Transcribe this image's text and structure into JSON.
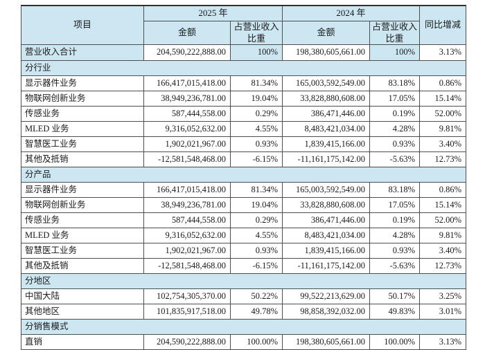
{
  "colors": {
    "header_bg": "#cde7f2",
    "border": "#4d4d4d",
    "text": "#1a1a1a",
    "page_bg": "#ffffff"
  },
  "table": {
    "headers": {
      "item": "项目",
      "year_2025": "2025 年",
      "year_2024": "2024 年",
      "amount_2025": "金额",
      "share_2025": "占营业收入比重",
      "amount_2024": "金额",
      "share_2024": "占营业收入比重",
      "yoy": "同比增减"
    },
    "rows": [
      {
        "kind": "total",
        "label": "营业收入合计",
        "amount_2025": "204,590,222,888.00",
        "share_2025": "100%",
        "amount_2024": "198,380,605,661.00",
        "share_2024": "100%",
        "yoy": "3.13%"
      },
      {
        "kind": "section",
        "label": "分行业"
      },
      {
        "kind": "data",
        "label": "显示器件业务",
        "amount_2025": "166,417,015,418.00",
        "share_2025": "81.34%",
        "amount_2024": "165,003,592,549.00",
        "share_2024": "83.18%",
        "yoy": "0.86%"
      },
      {
        "kind": "data",
        "label": "物联网创新业务",
        "amount_2025": "38,949,236,781.00",
        "share_2025": "19.04%",
        "amount_2024": "33,828,880,608.00",
        "share_2024": "17.05%",
        "yoy": "15.14%"
      },
      {
        "kind": "data",
        "label": "传感业务",
        "amount_2025": "587,444,558.00",
        "share_2025": "0.29%",
        "amount_2024": "386,471,446.00",
        "share_2024": "0.19%",
        "yoy": "52.00%"
      },
      {
        "kind": "data",
        "label": "MLED 业务",
        "amount_2025": "9,316,052,632.00",
        "share_2025": "4.55%",
        "amount_2024": "8,483,421,034.00",
        "share_2024": "4.28%",
        "yoy": "9.81%"
      },
      {
        "kind": "data",
        "label": "智慧医工业务",
        "amount_2025": "1,902,021,967.00",
        "share_2025": "0.93%",
        "amount_2024": "1,839,415,166.00",
        "share_2024": "0.93%",
        "yoy": "3.40%"
      },
      {
        "kind": "data",
        "label": "其他及抵销",
        "amount_2025": "-12,581,548,468.00",
        "share_2025": "-6.15%",
        "amount_2024": "-11,161,175,142.00",
        "share_2024": "-5.63%",
        "yoy": "12.73%"
      },
      {
        "kind": "section",
        "label": "分产品"
      },
      {
        "kind": "data",
        "label": "显示器件业务",
        "amount_2025": "166,417,015,418.00",
        "share_2025": "81.34%",
        "amount_2024": "165,003,592,549.00",
        "share_2024": "83.18%",
        "yoy": "0.86%"
      },
      {
        "kind": "data",
        "label": "物联网创新业务",
        "amount_2025": "38,949,236,781.00",
        "share_2025": "19.04%",
        "amount_2024": "33,828,880,608.00",
        "share_2024": "17.05%",
        "yoy": "15.14%"
      },
      {
        "kind": "data",
        "label": "传感业务",
        "amount_2025": "587,444,558.00",
        "share_2025": "0.29%",
        "amount_2024": "386,471,446.00",
        "share_2024": "0.19%",
        "yoy": "52.00%"
      },
      {
        "kind": "data",
        "label": "MLED 业务",
        "amount_2025": "9,316,052,632.00",
        "share_2025": "4.55%",
        "amount_2024": "8,483,421,034.00",
        "share_2024": "4.28%",
        "yoy": "9.81%"
      },
      {
        "kind": "data",
        "label": "智慧医工业务",
        "amount_2025": "1,902,021,967.00",
        "share_2025": "0.93%",
        "amount_2024": "1,839,415,166.00",
        "share_2024": "0.93%",
        "yoy": "3.40%"
      },
      {
        "kind": "data",
        "label": "其他及抵销",
        "amount_2025": "-12,581,548,468.00",
        "share_2025": "-6.15%",
        "amount_2024": "-11,161,175,142.00",
        "share_2024": "-5.63%",
        "yoy": "12.73%"
      },
      {
        "kind": "section",
        "label": "分地区"
      },
      {
        "kind": "data",
        "label": "中国大陆",
        "amount_2025": "102,754,305,370.00",
        "share_2025": "50.22%",
        "amount_2024": "99,522,213,629.00",
        "share_2024": "50.17%",
        "yoy": "3.25%"
      },
      {
        "kind": "data",
        "label": "其他地区",
        "amount_2025": "101,835,917,518.00",
        "share_2025": "49.78%",
        "amount_2024": "98,858,392,032.00",
        "share_2024": "49.83%",
        "yoy": "3.01%"
      },
      {
        "kind": "section",
        "label": "分销售模式"
      },
      {
        "kind": "data",
        "label": "直销",
        "amount_2025": "204,590,222,888.00",
        "share_2025": "100.00%",
        "amount_2024": "198,380,605,661.00",
        "share_2024": "100.00%",
        "yoy": "3.13%"
      }
    ]
  }
}
